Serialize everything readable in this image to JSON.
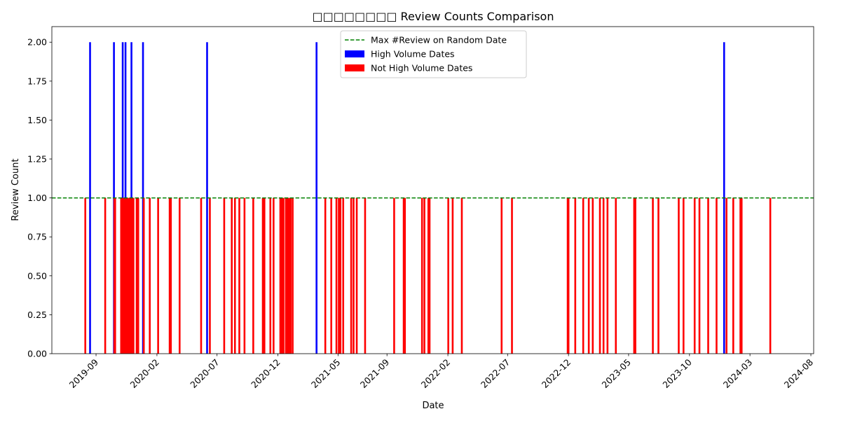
{
  "chart_data": {
    "type": "bar",
    "title": "□□□□□□□□ Review Counts Comparison",
    "xlabel": "Date",
    "ylabel": "Review Count",
    "xlim": [
      "2019-05-13",
      "2024-08-08"
    ],
    "ylim": [
      0,
      2.1
    ],
    "x_ticks": [
      "2019-09",
      "2020-02",
      "2020-07",
      "2020-12",
      "2021-05",
      "2021-09",
      "2022-02",
      "2022-07",
      "2022-12",
      "2023-05",
      "2023-10",
      "2024-03",
      "2024-08"
    ],
    "y_ticks": [
      "0.00",
      "0.25",
      "0.50",
      "0.75",
      "1.00",
      "1.25",
      "1.50",
      "1.75",
      "2.00"
    ],
    "grid": false,
    "legend_position": "top-center",
    "reference_line": {
      "name": "Max #Review on Random Date",
      "value": 1.0,
      "color": "#008000",
      "style": "dashed"
    },
    "series": [
      {
        "name": "High Volume Dates",
        "color": "#0000ff",
        "points": [
          {
            "x": "2019-08-17",
            "y": 2
          },
          {
            "x": "2019-10-16",
            "y": 2
          },
          {
            "x": "2019-11-07",
            "y": 2
          },
          {
            "x": "2019-11-14",
            "y": 2
          },
          {
            "x": "2019-11-29",
            "y": 2
          },
          {
            "x": "2019-12-28",
            "y": 2
          },
          {
            "x": "2020-06-06",
            "y": 2
          },
          {
            "x": "2021-03-08",
            "y": 2
          },
          {
            "x": "2023-12-27",
            "y": 2
          }
        ]
      },
      {
        "name": "Not High Volume Dates",
        "color": "#ff0000",
        "points": [
          {
            "x": "2019-08-05",
            "y": 1
          },
          {
            "x": "2019-09-24",
            "y": 1
          },
          {
            "x": "2019-10-17",
            "y": 1
          },
          {
            "x": "2019-10-19",
            "y": 1
          },
          {
            "x": "2019-11-03",
            "y": 1
          },
          {
            "x": "2019-11-05",
            "y": 1
          },
          {
            "x": "2019-11-08",
            "y": 1
          },
          {
            "x": "2019-11-10",
            "y": 1
          },
          {
            "x": "2019-11-12",
            "y": 1
          },
          {
            "x": "2019-11-15",
            "y": 1
          },
          {
            "x": "2019-11-17",
            "y": 1
          },
          {
            "x": "2019-11-19",
            "y": 1
          },
          {
            "x": "2019-11-21",
            "y": 1
          },
          {
            "x": "2019-11-23",
            "y": 1
          },
          {
            "x": "2019-11-25",
            "y": 1
          },
          {
            "x": "2019-11-27",
            "y": 1
          },
          {
            "x": "2019-12-01",
            "y": 1
          },
          {
            "x": "2019-12-04",
            "y": 1
          },
          {
            "x": "2019-12-12",
            "y": 1
          },
          {
            "x": "2019-12-16",
            "y": 1
          },
          {
            "x": "2019-12-30",
            "y": 1
          },
          {
            "x": "2020-01-14",
            "y": 1
          },
          {
            "x": "2020-02-04",
            "y": 1
          },
          {
            "x": "2020-03-04",
            "y": 1
          },
          {
            "x": "2020-03-07",
            "y": 1
          },
          {
            "x": "2020-03-29",
            "y": 1
          },
          {
            "x": "2020-05-22",
            "y": 1
          },
          {
            "x": "2020-06-13",
            "y": 1
          },
          {
            "x": "2020-07-19",
            "y": 1
          },
          {
            "x": "2020-08-07",
            "y": 1
          },
          {
            "x": "2020-08-15",
            "y": 1
          },
          {
            "x": "2020-08-26",
            "y": 1
          },
          {
            "x": "2020-09-08",
            "y": 1
          },
          {
            "x": "2020-09-30",
            "y": 1
          },
          {
            "x": "2020-10-24",
            "y": 1
          },
          {
            "x": "2020-10-28",
            "y": 1
          },
          {
            "x": "2020-11-12",
            "y": 1
          },
          {
            "x": "2020-11-20",
            "y": 1
          },
          {
            "x": "2020-12-07",
            "y": 1
          },
          {
            "x": "2020-12-11",
            "y": 1
          },
          {
            "x": "2020-12-15",
            "y": 1
          },
          {
            "x": "2020-12-21",
            "y": 1
          },
          {
            "x": "2020-12-25",
            "y": 1
          },
          {
            "x": "2020-12-29",
            "y": 1
          },
          {
            "x": "2021-01-02",
            "y": 1
          },
          {
            "x": "2021-01-07",
            "y": 1
          },
          {
            "x": "2021-03-30",
            "y": 1
          },
          {
            "x": "2021-04-14",
            "y": 1
          },
          {
            "x": "2021-04-27",
            "y": 1
          },
          {
            "x": "2021-05-03",
            "y": 1
          },
          {
            "x": "2021-05-07",
            "y": 1
          },
          {
            "x": "2021-05-14",
            "y": 1
          },
          {
            "x": "2021-06-03",
            "y": 1
          },
          {
            "x": "2021-06-09",
            "y": 1
          },
          {
            "x": "2021-06-17",
            "y": 1
          },
          {
            "x": "2021-07-08",
            "y": 1
          },
          {
            "x": "2021-09-19",
            "y": 1
          },
          {
            "x": "2021-10-13",
            "y": 1
          },
          {
            "x": "2021-10-16",
            "y": 1
          },
          {
            "x": "2021-11-28",
            "y": 1
          },
          {
            "x": "2021-12-04",
            "y": 1
          },
          {
            "x": "2021-12-14",
            "y": 1
          },
          {
            "x": "2021-12-17",
            "y": 1
          },
          {
            "x": "2022-02-02",
            "y": 1
          },
          {
            "x": "2022-02-13",
            "y": 1
          },
          {
            "x": "2022-03-08",
            "y": 1
          },
          {
            "x": "2022-06-16",
            "y": 1
          },
          {
            "x": "2022-07-12",
            "y": 1
          },
          {
            "x": "2022-11-29",
            "y": 1
          },
          {
            "x": "2022-12-01",
            "y": 1
          },
          {
            "x": "2022-12-18",
            "y": 1
          },
          {
            "x": "2023-01-07",
            "y": 1
          },
          {
            "x": "2023-01-21",
            "y": 1
          },
          {
            "x": "2023-01-31",
            "y": 1
          },
          {
            "x": "2023-02-18",
            "y": 1
          },
          {
            "x": "2023-02-27",
            "y": 1
          },
          {
            "x": "2023-03-09",
            "y": 1
          },
          {
            "x": "2023-03-30",
            "y": 1
          },
          {
            "x": "2023-05-15",
            "y": 1
          },
          {
            "x": "2023-05-18",
            "y": 1
          },
          {
            "x": "2023-07-01",
            "y": 1
          },
          {
            "x": "2023-07-15",
            "y": 1
          },
          {
            "x": "2023-09-04",
            "y": 1
          },
          {
            "x": "2023-09-16",
            "y": 1
          },
          {
            "x": "2023-10-14",
            "y": 1
          },
          {
            "x": "2023-10-26",
            "y": 1
          },
          {
            "x": "2023-11-17",
            "y": 1
          },
          {
            "x": "2023-12-08",
            "y": 1
          },
          {
            "x": "2024-01-02",
            "y": 1
          },
          {
            "x": "2024-01-19",
            "y": 1
          },
          {
            "x": "2024-02-06",
            "y": 1
          },
          {
            "x": "2024-02-09",
            "y": 1
          },
          {
            "x": "2024-04-21",
            "y": 1
          }
        ]
      }
    ]
  }
}
